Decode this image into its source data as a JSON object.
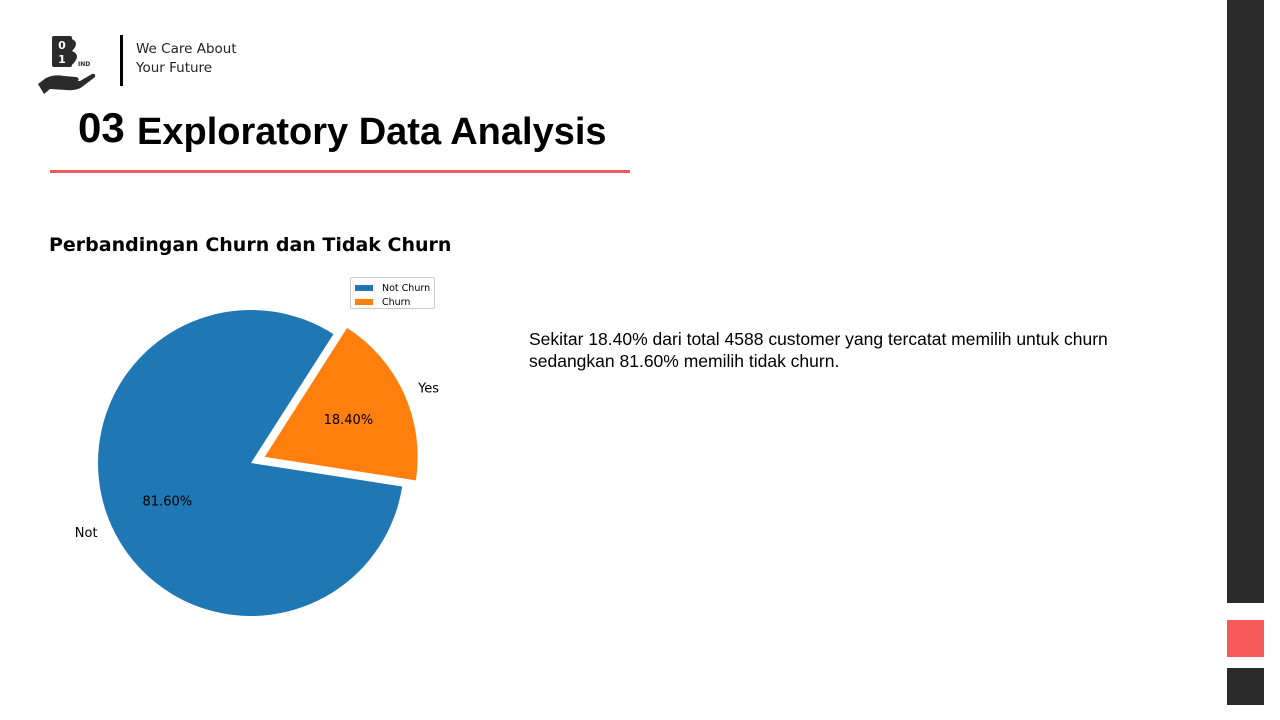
{
  "brand": {
    "logo_icon": "hand-holding-binary-b-logo",
    "tagline_line1": "We Care About",
    "tagline_line2": "Your Future"
  },
  "header": {
    "section_number": "03",
    "section_title": "Exploratory Data Analysis",
    "underline_color": "#f05a5a"
  },
  "chart_data": {
    "type": "pie",
    "title": "Perbandingan Churn dan Tidak Churn",
    "slices": [
      {
        "label": "Not",
        "legend": "Not Churn",
        "value": 81.6,
        "pct_label": "81.60%",
        "color": "#1f77b4"
      },
      {
        "label": "Yes",
        "legend": "Churn",
        "value": 18.4,
        "pct_label": "18.40%",
        "color": "#ff7f0e",
        "exploded": true
      }
    ],
    "legend_position": "top-right"
  },
  "description": {
    "text": "Sekitar 18.40% dari total 4588 customer yang tercatat memilih untuk churn sedangkan 81.60% memilih tidak churn."
  },
  "decor": {
    "dark_color": "#2b2b2b",
    "accent_color": "#f75a5a"
  }
}
